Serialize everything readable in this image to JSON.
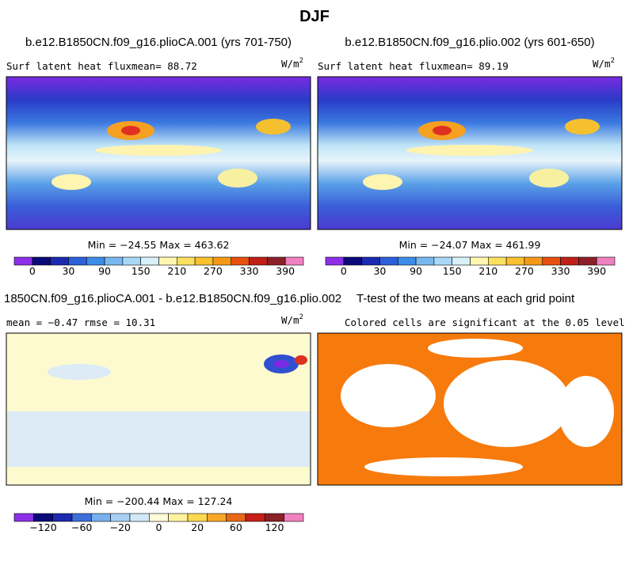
{
  "title": "DJF",
  "panels": [
    {
      "title": "b.e12.B1850CN.f09_g16.plioCA.001 (yrs 701-750)",
      "left_label": "Surf latent heat fluxmean=  88.72",
      "units": "W/m",
      "units_exp": "2",
      "stats": "Min = −24.55 Max = 463.62",
      "colorbar_labels": [
        "0",
        "30",
        "90",
        "150",
        "210",
        "270",
        "330",
        "390"
      ]
    },
    {
      "title": "b.e12.B1850CN.f09_g16.plio.002 (yrs 601-650)",
      "left_label": "Surf latent heat fluxmean=  89.19",
      "units": "W/m",
      "units_exp": "2",
      "stats": "Min = −24.07 Max = 461.99",
      "colorbar_labels": [
        "0",
        "30",
        "90",
        "150",
        "210",
        "270",
        "330",
        "390"
      ]
    },
    {
      "title": "1850CN.f09_g16.plioCA.001 - b.e12.B1850CN.f09_g16.plio.002",
      "left_label": "mean =  −0.47    rmse =  10.31",
      "units": "W/m",
      "units_exp": "2",
      "stats": "Min = −200.44 Max = 127.24",
      "colorbar_labels": [
        "−120",
        "−60",
        "−20",
        "0",
        "20",
        "60",
        "120"
      ]
    },
    {
      "title": "T-test of the two means at each grid point",
      "left_label": "Colored cells are significant at the 0.05 level"
    }
  ]
}
